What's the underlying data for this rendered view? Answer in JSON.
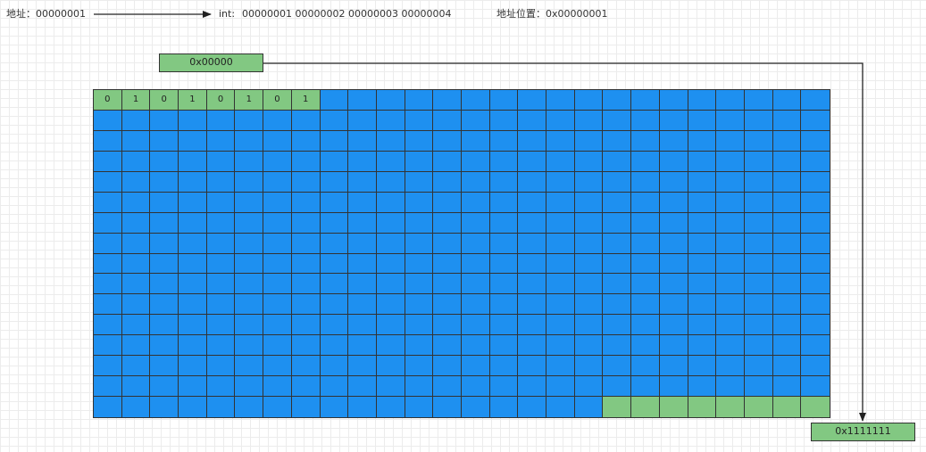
{
  "header": {
    "address_label": "地址：",
    "address_value": "00000001",
    "int_label": "int:",
    "int_values": "00000001 00000002 00000003 00000004",
    "position_label": "地址位置：",
    "position_value": "0x00000001"
  },
  "start_address": "0x00000",
  "end_address": "0x1111111",
  "memory": {
    "columns": 26,
    "rows": 16,
    "first_row_bits": [
      "0",
      "1",
      "0",
      "1",
      "0",
      "1",
      "0",
      "1"
    ],
    "last_row_green_cells": 8,
    "colors": {
      "cell_fill": "#1e90f0",
      "highlight_fill": "#82c882",
      "border": "#333333"
    }
  }
}
